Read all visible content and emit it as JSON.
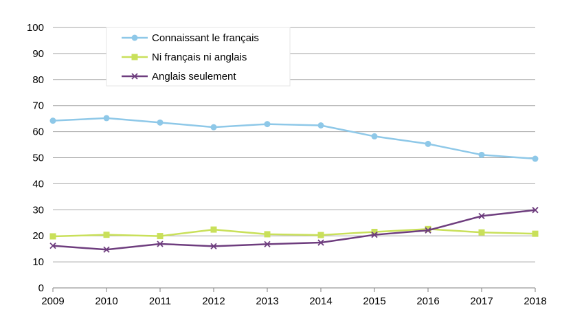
{
  "chart_data": {
    "type": "line",
    "x": [
      "2009",
      "2010",
      "2011",
      "2012",
      "2013",
      "2014",
      "2015",
      "2016",
      "2017",
      "2018"
    ],
    "series": [
      {
        "name": "Connaissant le français",
        "color": "#8EC8E8",
        "marker": "circle",
        "values": [
          64.2,
          65.2,
          63.5,
          61.7,
          62.9,
          62.4,
          58.2,
          55.3,
          51.1,
          49.6
        ]
      },
      {
        "name": "Ni français ni anglais",
        "color": "#C9E05A",
        "marker": "square",
        "values": [
          19.8,
          20.4,
          19.9,
          22.4,
          20.6,
          20.3,
          21.5,
          22.6,
          21.3,
          20.8
        ]
      },
      {
        "name": "Anglais seulement",
        "color": "#6E3D7E",
        "marker": "x",
        "values": [
          16.2,
          14.7,
          16.9,
          16.0,
          16.8,
          17.4,
          20.4,
          22.1,
          27.6,
          29.9
        ]
      }
    ],
    "ylim": [
      0,
      100
    ],
    "yticks": [
      "0",
      "10",
      "20",
      "30",
      "40",
      "50",
      "60",
      "70",
      "80",
      "90",
      "100"
    ],
    "grid": true,
    "legend_position": "top-left",
    "title": "",
    "xlabel": "",
    "ylabel": ""
  }
}
